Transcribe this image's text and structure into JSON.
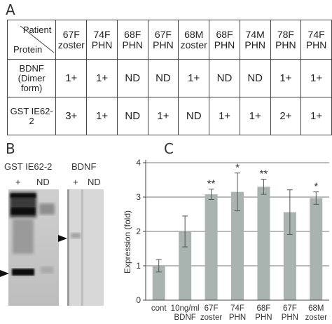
{
  "panels": {
    "a": "A",
    "b": "B",
    "c": "C"
  },
  "table": {
    "corner_top": "Patient",
    "corner_bottom": "Protein",
    "columns": [
      [
        "67F",
        "zoster"
      ],
      [
        "74F",
        "PHN"
      ],
      [
        "68F",
        "PHN"
      ],
      [
        "67F",
        "PHN"
      ],
      [
        "68M",
        "zoster"
      ],
      [
        "68F",
        "PHN"
      ],
      [
        "74M",
        "PHN"
      ],
      [
        "78F",
        "PHN"
      ],
      [
        "74F",
        "PHN"
      ]
    ],
    "rows": [
      {
        "label": [
          "BDNF",
          "(Dimer form)"
        ],
        "values": [
          "1+",
          "1+",
          "ND",
          "ND",
          "1+",
          "ND",
          "ND",
          "1+",
          "1+"
        ]
      },
      {
        "label": [
          "GST IE62-2"
        ],
        "values": [
          "3+",
          "1+",
          "ND",
          "1+",
          "ND",
          "1+",
          "1+",
          "2+",
          "1+"
        ]
      }
    ]
  },
  "blots": {
    "left_title": "GST IE62-2",
    "left_lanes": [
      "+",
      "ND"
    ],
    "right_title": "BDNF",
    "right_lanes": [
      "+",
      "ND"
    ]
  },
  "chart_data": {
    "type": "bar",
    "ylabel": "Expression (fold)",
    "ylim": [
      0,
      4
    ],
    "yticks": [
      "0",
      "1",
      "2",
      "3",
      "4"
    ],
    "categories": [
      [
        "cont"
      ],
      [
        "10ng/ml",
        "BDNF"
      ],
      [
        "67F",
        "zoster"
      ],
      [
        "74F",
        "PHN"
      ],
      [
        "68F",
        "PHN"
      ],
      [
        "67F",
        "PHN"
      ],
      [
        "68M",
        "zoster"
      ]
    ],
    "values": [
      1.0,
      2.0,
      3.08,
      3.15,
      3.3,
      2.56,
      2.97
    ],
    "errors": [
      0.18,
      0.45,
      0.15,
      0.55,
      0.22,
      0.65,
      0.18
    ],
    "significance": [
      "",
      "",
      "**",
      "*",
      "**",
      "",
      "*"
    ],
    "bar_color": "#a9b3b0",
    "grid": true
  }
}
